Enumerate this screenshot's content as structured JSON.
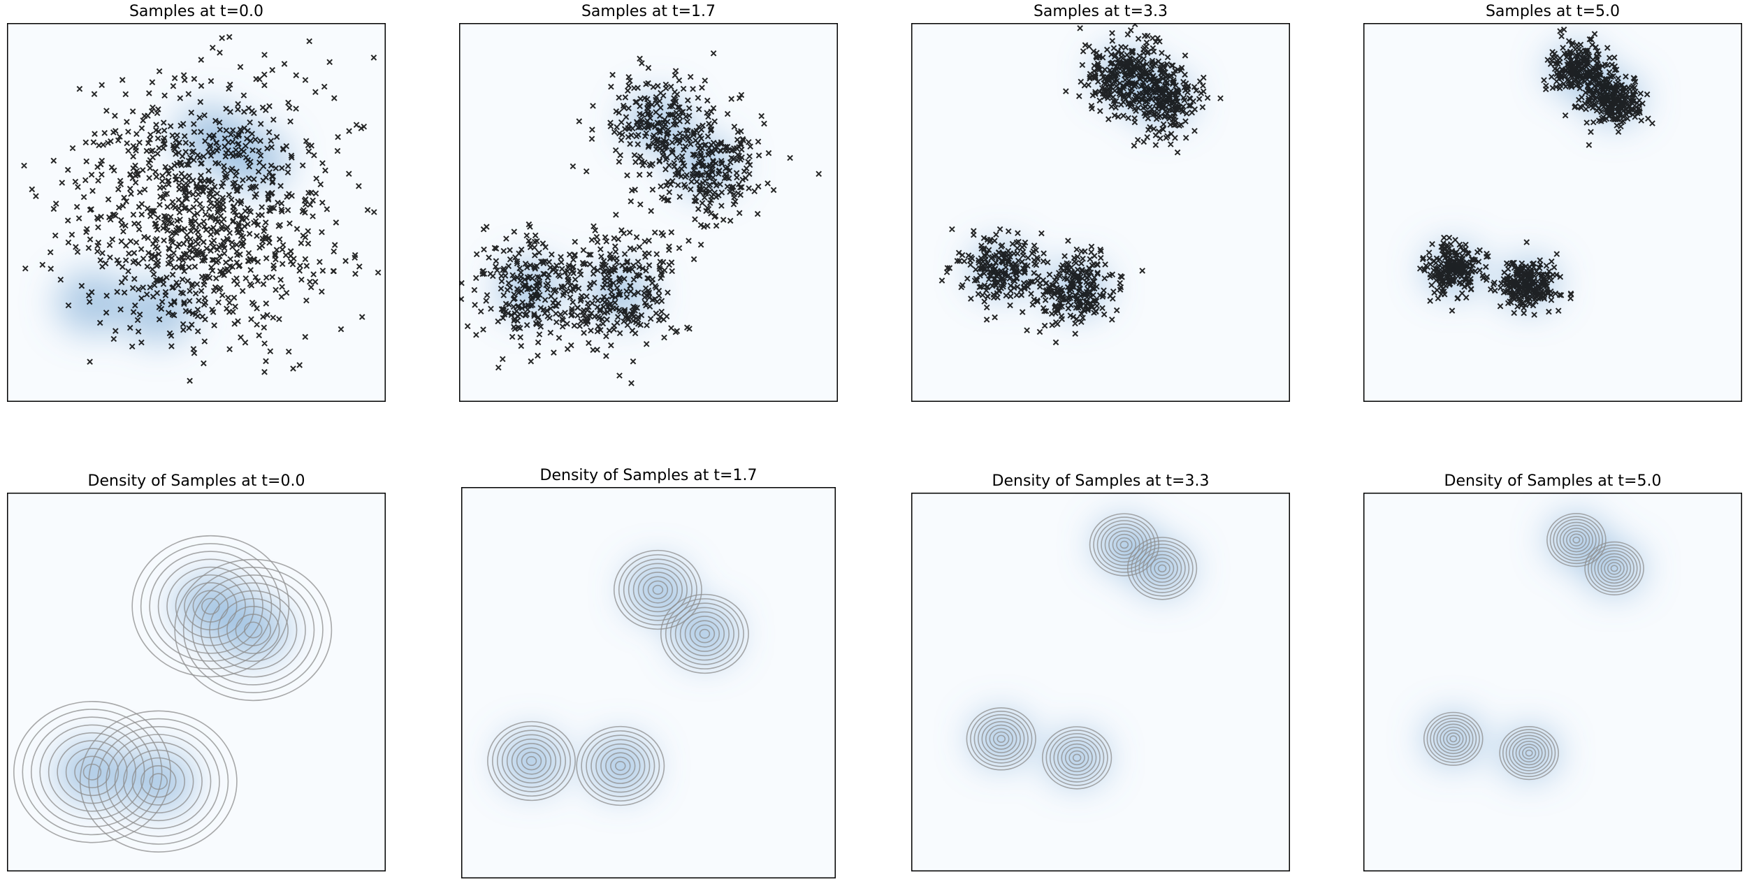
{
  "figure": {
    "colors": {
      "density": "#6a9fcf",
      "density_bg": "#f8fbfe",
      "marker": "#000000",
      "contour": "#8c8c8c",
      "frame": "#000000"
    }
  },
  "chart_data": [
    {
      "type": "scatter",
      "title": "Samples at t=0.0",
      "t": 0.0,
      "marker": "x",
      "xlim": [
        -4,
        4
      ],
      "ylim": [
        -4,
        4
      ],
      "grid": false,
      "density_background": true,
      "component_centers": [
        [
          0.3,
          1.6
        ],
        [
          1.2,
          1.1
        ],
        [
          -2.2,
          -1.9
        ],
        [
          -0.8,
          -2.1
        ]
      ],
      "sample_spread": 1.45,
      "n_samples": 1000
    },
    {
      "type": "scatter",
      "title": "Samples at t=1.7",
      "t": 1.7,
      "marker": "x",
      "xlim": [
        -4,
        4
      ],
      "ylim": [
        -4,
        4
      ],
      "grid": false,
      "density_background": true,
      "component_centers": [
        [
          0.2,
          1.9
        ],
        [
          1.2,
          1.0
        ],
        [
          -2.5,
          -1.6
        ],
        [
          -0.6,
          -1.7
        ]
      ],
      "sample_spread": 0.65,
      "n_samples": 1000
    },
    {
      "type": "scatter",
      "title": "Samples at t=3.3",
      "t": 3.3,
      "marker": "x",
      "xlim": [
        -4,
        4
      ],
      "ylim": [
        -4,
        4
      ],
      "grid": false,
      "density_background": true,
      "component_centers": [
        [
          0.5,
          2.9
        ],
        [
          1.3,
          2.4
        ],
        [
          -2.1,
          -1.2
        ],
        [
          -0.5,
          -1.6
        ]
      ],
      "sample_spread": 0.42,
      "n_samples": 1000
    },
    {
      "type": "scatter",
      "title": "Samples at t=5.0",
      "t": 5.0,
      "marker": "x",
      "xlim": [
        -4,
        4
      ],
      "ylim": [
        -4,
        4
      ],
      "grid": false,
      "density_background": true,
      "component_centers": [
        [
          0.5,
          3.0
        ],
        [
          1.3,
          2.4
        ],
        [
          -2.1,
          -1.2
        ],
        [
          -0.5,
          -1.5
        ]
      ],
      "sample_spread": 0.3,
      "n_samples": 1000
    },
    {
      "type": "heatmap",
      "title": "Density of Samples at t=0.0",
      "t": 0.0,
      "kde_contours": true,
      "contour_levels": 9,
      "xlim": [
        -4,
        4
      ],
      "ylim": [
        -4,
        4
      ],
      "grid": false,
      "component_centers": [
        [
          0.3,
          1.6
        ],
        [
          1.2,
          1.1
        ],
        [
          -2.2,
          -1.9
        ],
        [
          -0.8,
          -2.1
        ]
      ],
      "sample_spread": 1.45
    },
    {
      "type": "heatmap",
      "title": "Density of Samples at t=1.7",
      "t": 1.7,
      "kde_contours": true,
      "contour_levels": 9,
      "xlim": [
        -4,
        4
      ],
      "ylim": [
        -4,
        4
      ],
      "grid": false,
      "component_centers": [
        [
          0.2,
          1.9
        ],
        [
          1.2,
          1.0
        ],
        [
          -2.5,
          -1.6
        ],
        [
          -0.6,
          -1.7
        ]
      ],
      "sample_spread": 0.65
    },
    {
      "type": "heatmap",
      "title": "Density of Samples at t=3.3",
      "t": 3.3,
      "kde_contours": true,
      "contour_levels": 9,
      "xlim": [
        -4,
        4
      ],
      "ylim": [
        -4,
        4
      ],
      "grid": false,
      "component_centers": [
        [
          0.5,
          2.9
        ],
        [
          1.3,
          2.4
        ],
        [
          -2.1,
          -1.2
        ],
        [
          -0.5,
          -1.6
        ]
      ],
      "sample_spread": 0.42
    },
    {
      "type": "heatmap",
      "title": "Density of Samples at t=5.0",
      "t": 5.0,
      "kde_contours": true,
      "contour_levels": 9,
      "xlim": [
        -4,
        4
      ],
      "ylim": [
        -4,
        4
      ],
      "grid": false,
      "component_centers": [
        [
          0.5,
          3.0
        ],
        [
          1.3,
          2.4
        ],
        [
          -2.1,
          -1.2
        ],
        [
          -0.5,
          -1.5
        ]
      ],
      "sample_spread": 0.3
    }
  ]
}
